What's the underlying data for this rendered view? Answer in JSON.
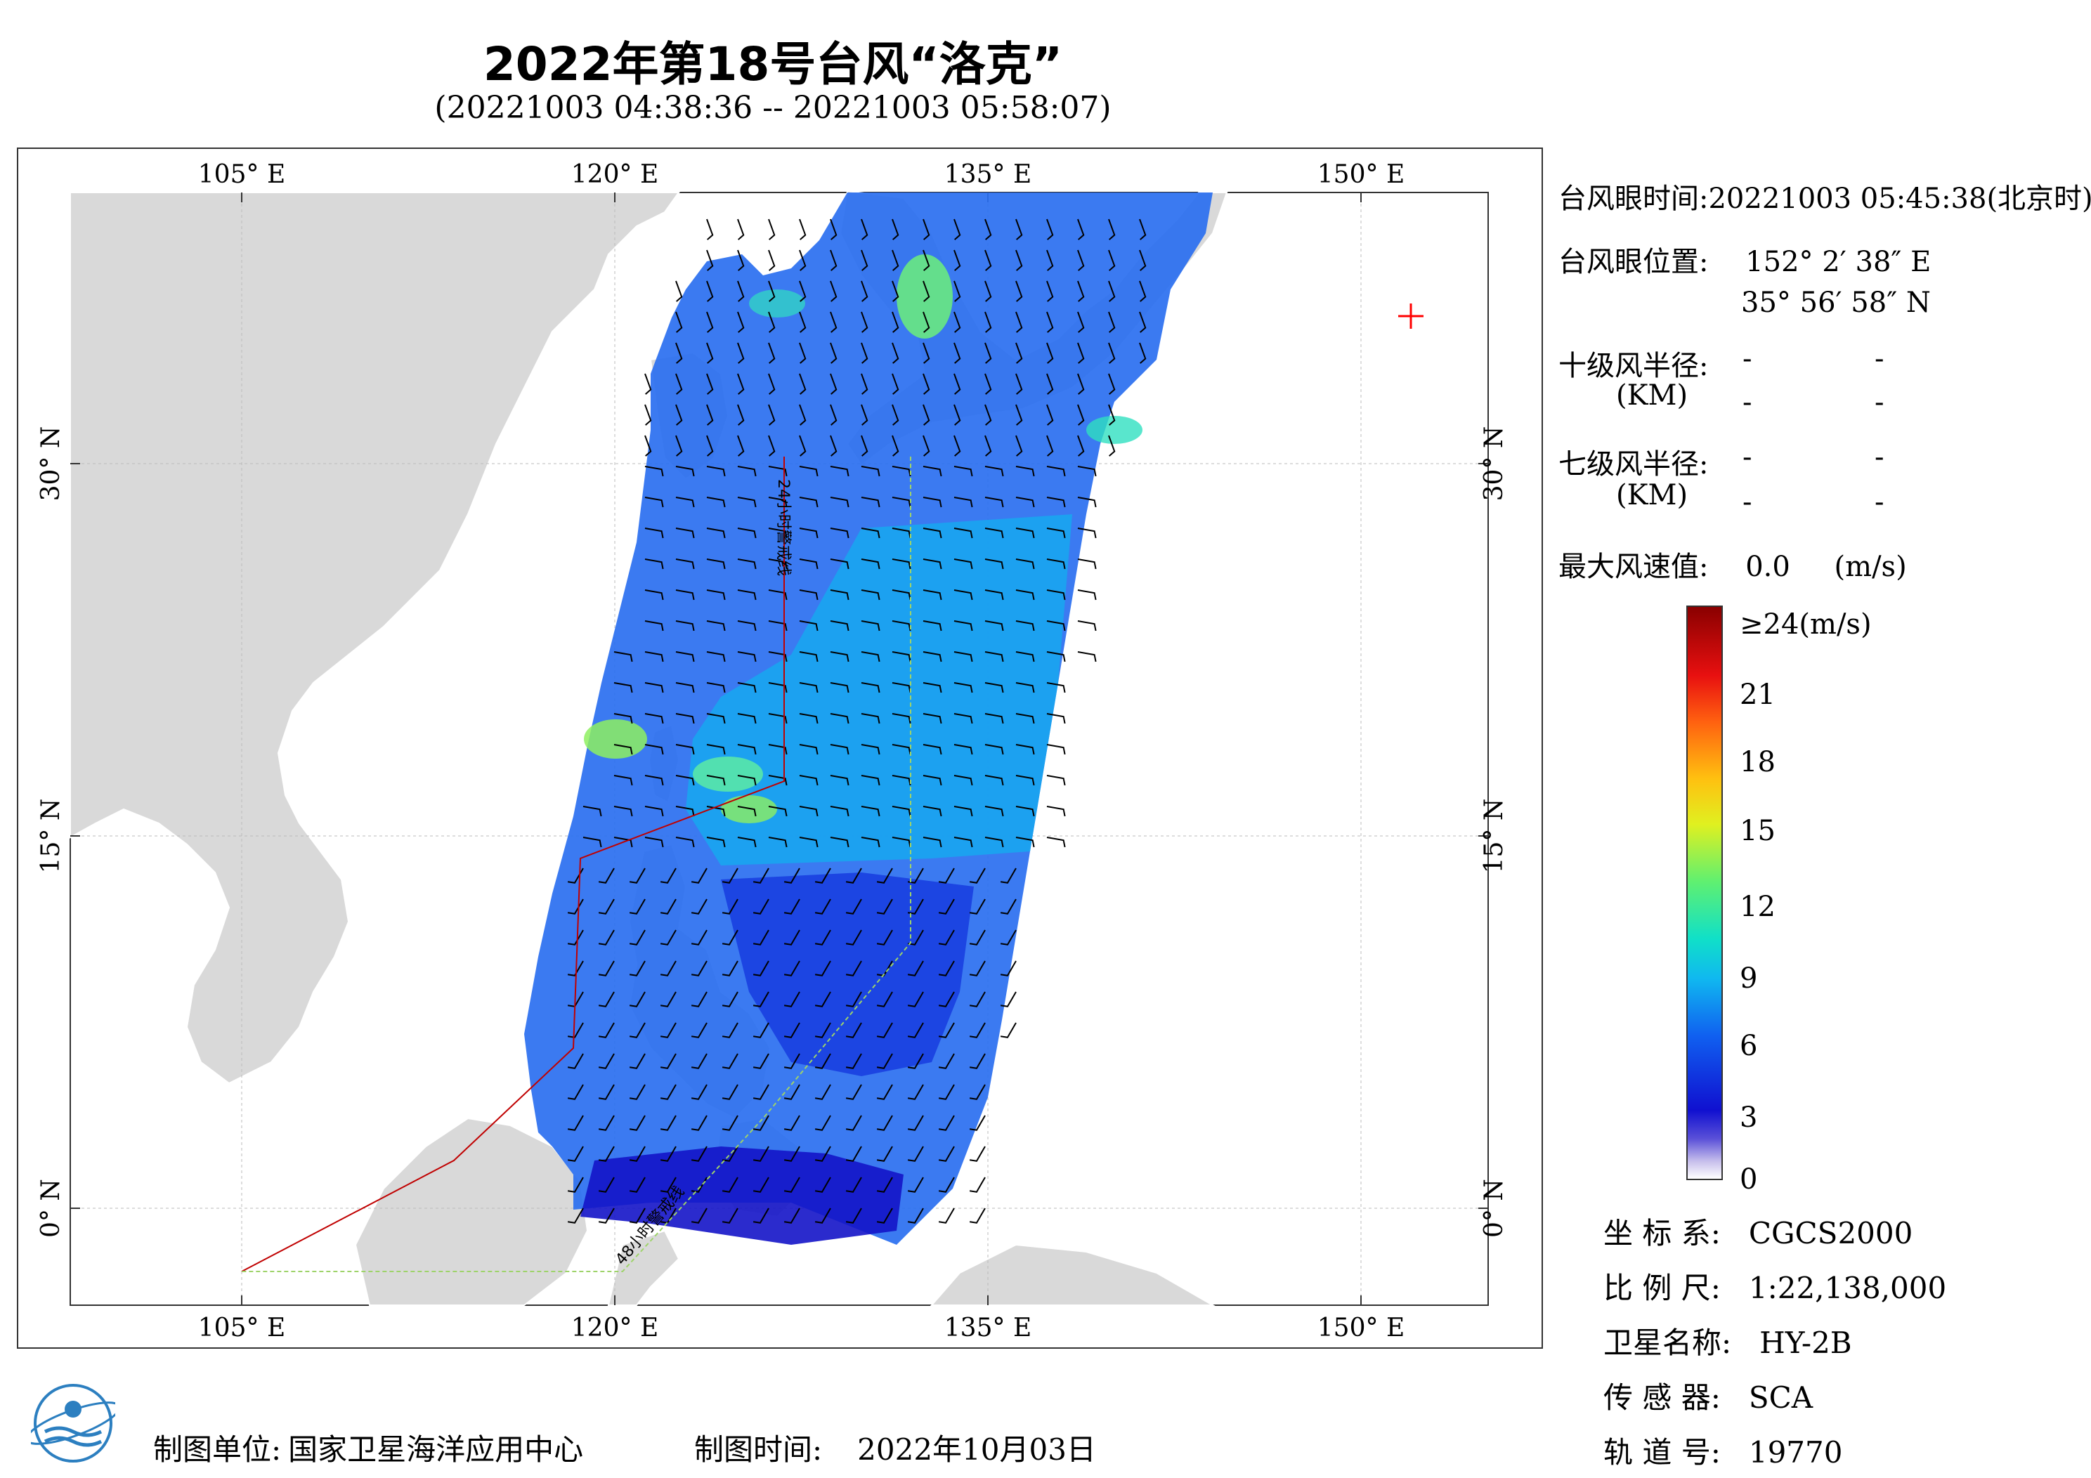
{
  "title": "2022年第18号台风“洛克”",
  "subtitle": "(20221003 04:38:36 -- 20221003 05:58:07)",
  "map": {
    "lon_labels": [
      "105° E",
      "120° E",
      "135° E",
      "150° E"
    ],
    "lat_labels": [
      "30° N",
      "15° N",
      "0° N"
    ],
    "warning_line_24": "24小时警戒线",
    "warning_line_48": "48小时警戒线",
    "colors": {
      "land": "#d9d9d9",
      "sea": "#ffffff",
      "warning_24": "#c00000",
      "warning_48": "#9ed36a",
      "eye_marker": "#ff0000"
    }
  },
  "typhoon": {
    "eye_time_label": "台风眼时间:",
    "eye_time": "20221003 05:45:38(北京时)",
    "eye_pos_label": "台风眼位置:",
    "eye_lon": "152° 2′ 38″ E",
    "eye_lat": "35° 56′ 58″ N",
    "r10_label": "十级风半径:",
    "r7_label": "七级风半径:",
    "km_label": "(KM)",
    "dash": "-",
    "max_wind_label": "最大风速值:",
    "max_wind_value": "0.0",
    "max_wind_unit": "(m/s)"
  },
  "colorbar": {
    "ticks": [
      "≥24(m/s)",
      "21",
      "18",
      "15",
      "12",
      "9",
      "6",
      "3",
      "0"
    ],
    "values": [
      24,
      21,
      18,
      15,
      12,
      9,
      6,
      3,
      0
    ]
  },
  "info": {
    "coord_label": "坐 标 系:",
    "coord_value": "CGCS2000",
    "scale_label": "比 例 尺:",
    "scale_value": "1:22,138,000",
    "sat_label": "卫星名称:",
    "sat_value": "HY-2B",
    "sensor_label": "传 感 器:",
    "sensor_value": "SCA",
    "orbit_label": "轨 道 号:",
    "orbit_value": "19770"
  },
  "footer": {
    "unit_label": "制图单位:",
    "unit_value": "国家卫星海洋应用中心",
    "time_label": "制图时间:",
    "time_value": "2022年10月03日"
  }
}
